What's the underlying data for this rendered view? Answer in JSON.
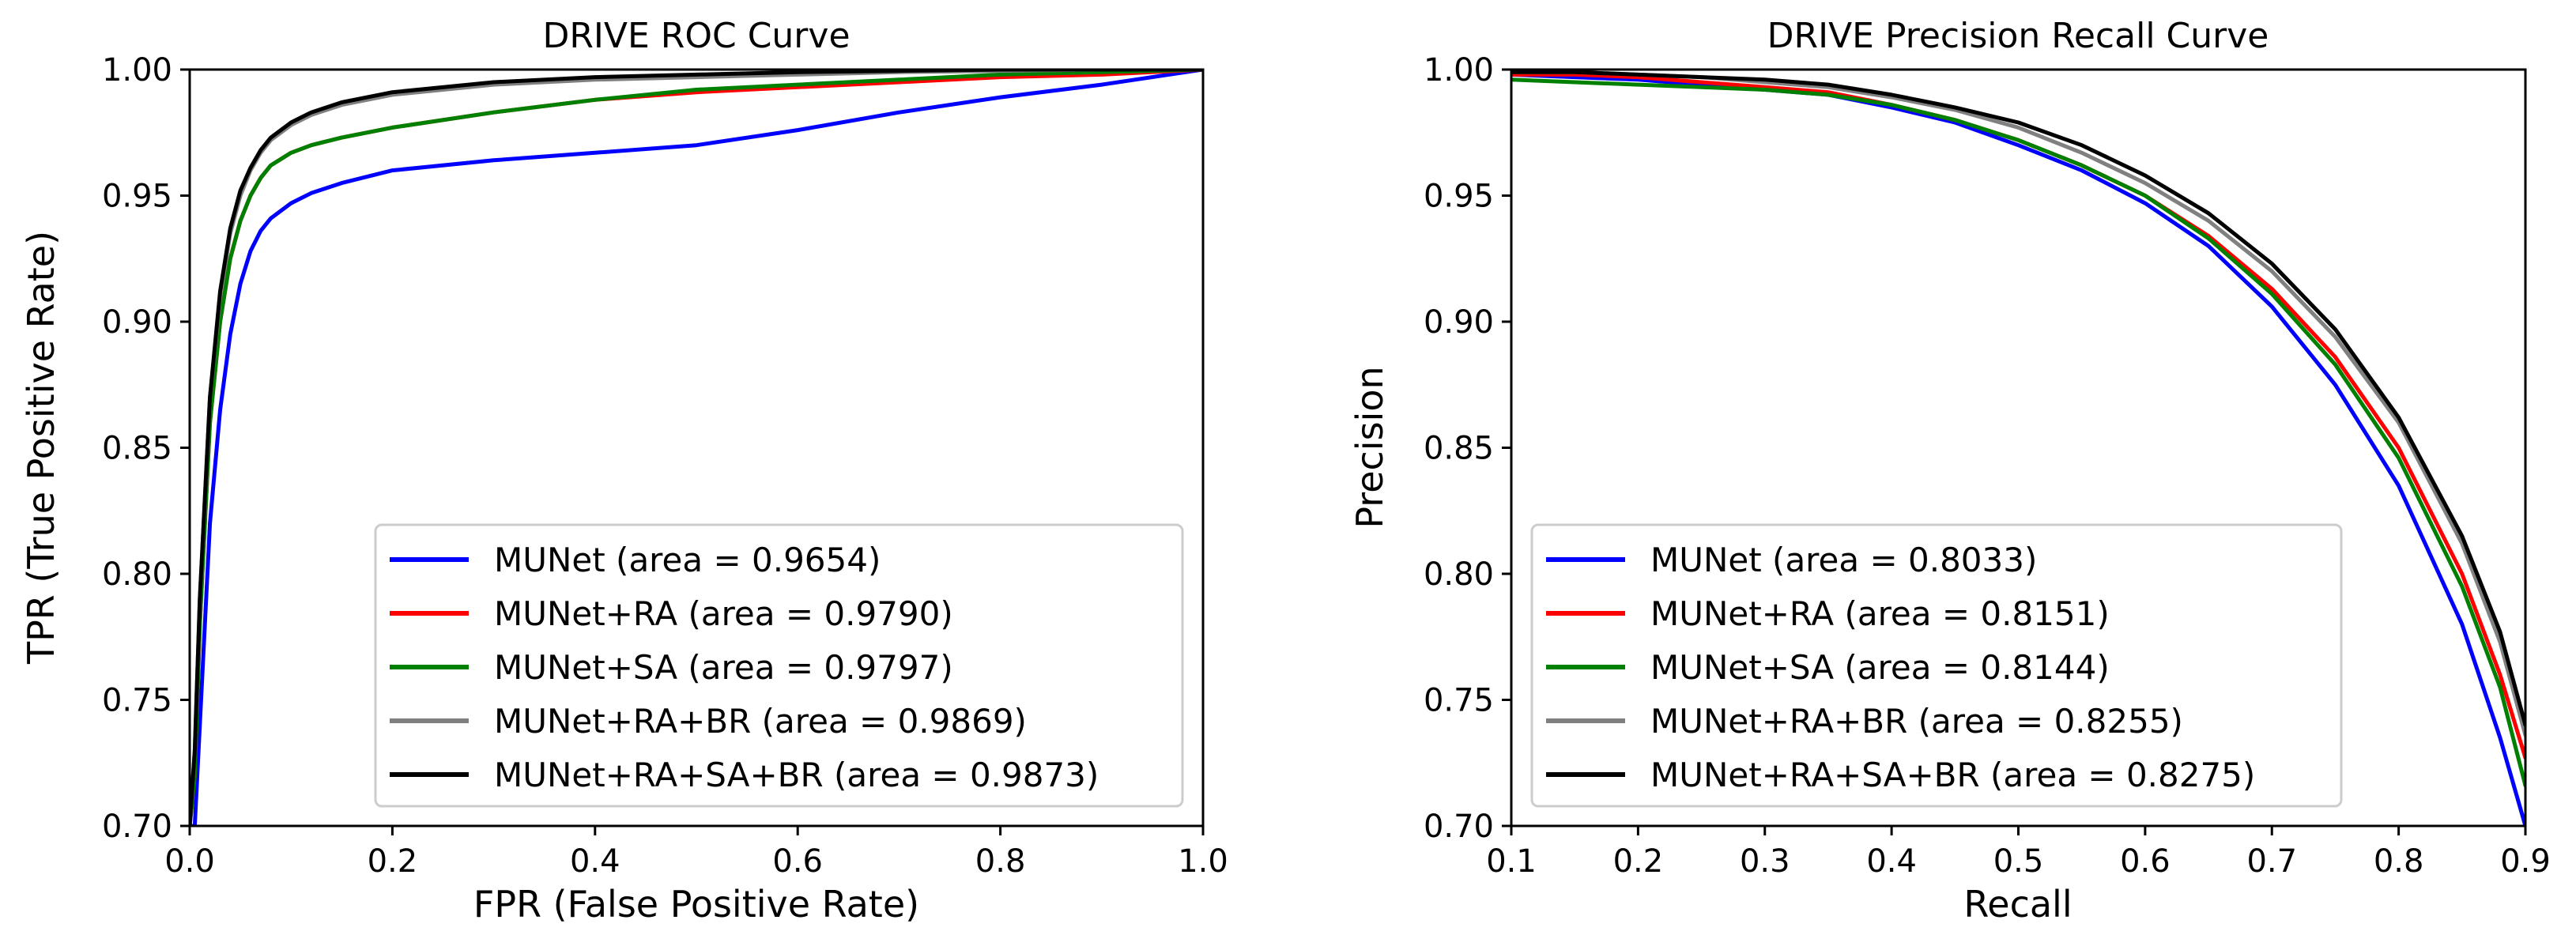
{
  "chart_data": [
    {
      "type": "line",
      "title": "DRIVE  ROC Curve",
      "xlabel": "FPR (False Positive Rate)",
      "ylabel": "TPR (True Positive Rate)",
      "xlim": [
        0.0,
        1.0
      ],
      "ylim": [
        0.7,
        1.0
      ],
      "xticks": [
        "0.0",
        "0.2",
        "0.4",
        "0.6",
        "0.8",
        "1.0"
      ],
      "yticks": [
        "0.70",
        "0.75",
        "0.80",
        "0.85",
        "0.90",
        "0.95",
        "1.00"
      ],
      "legend_position": "lower-right",
      "grid": false,
      "series": [
        {
          "name": "MUNet (area = 0.9654)",
          "color": "#0000ff",
          "x": [
            0.0,
            0.005,
            0.01,
            0.015,
            0.02,
            0.03,
            0.04,
            0.05,
            0.06,
            0.07,
            0.08,
            0.1,
            0.12,
            0.15,
            0.2,
            0.3,
            0.4,
            0.5,
            0.6,
            0.7,
            0.8,
            0.9,
            1.0
          ],
          "y": [
            0.7,
            0.7,
            0.74,
            0.78,
            0.82,
            0.865,
            0.895,
            0.915,
            0.928,
            0.936,
            0.941,
            0.947,
            0.951,
            0.955,
            0.96,
            0.964,
            0.967,
            0.97,
            0.976,
            0.983,
            0.989,
            0.994,
            1.0
          ]
        },
        {
          "name": "MUNet+RA (area = 0.9790)",
          "color": "#ff0000",
          "x": [
            0.0,
            0.005,
            0.01,
            0.015,
            0.02,
            0.03,
            0.04,
            0.05,
            0.06,
            0.07,
            0.08,
            0.1,
            0.12,
            0.15,
            0.2,
            0.3,
            0.4,
            0.5,
            0.6,
            0.7,
            0.8,
            0.9,
            1.0
          ],
          "y": [
            0.7,
            0.72,
            0.78,
            0.82,
            0.86,
            0.9,
            0.925,
            0.94,
            0.95,
            0.957,
            0.962,
            0.967,
            0.97,
            0.973,
            0.977,
            0.983,
            0.988,
            0.991,
            0.993,
            0.995,
            0.997,
            0.998,
            1.0
          ]
        },
        {
          "name": "MUNet+SA (area = 0.9797)",
          "color": "#008000",
          "x": [
            0.0,
            0.005,
            0.01,
            0.015,
            0.02,
            0.03,
            0.04,
            0.05,
            0.06,
            0.07,
            0.08,
            0.1,
            0.12,
            0.15,
            0.2,
            0.3,
            0.4,
            0.5,
            0.6,
            0.7,
            0.8,
            0.9,
            1.0
          ],
          "y": [
            0.7,
            0.72,
            0.78,
            0.82,
            0.86,
            0.9,
            0.925,
            0.94,
            0.95,
            0.957,
            0.962,
            0.967,
            0.97,
            0.973,
            0.977,
            0.983,
            0.988,
            0.992,
            0.994,
            0.996,
            0.998,
            0.999,
            1.0
          ]
        },
        {
          "name": "MUNet+RA+BR (area = 0.9869)",
          "color": "#808080",
          "x": [
            0.0,
            0.005,
            0.01,
            0.015,
            0.02,
            0.03,
            0.04,
            0.05,
            0.06,
            0.07,
            0.08,
            0.1,
            0.12,
            0.15,
            0.2,
            0.3,
            0.4,
            0.5,
            0.6,
            0.7,
            0.8,
            0.9,
            1.0
          ],
          "y": [
            0.7,
            0.73,
            0.79,
            0.83,
            0.87,
            0.91,
            0.935,
            0.95,
            0.96,
            0.967,
            0.972,
            0.978,
            0.982,
            0.986,
            0.99,
            0.994,
            0.996,
            0.997,
            0.998,
            0.999,
            0.9995,
            1.0,
            1.0
          ]
        },
        {
          "name": "MUNet+RA+SA+BR (area = 0.9873)",
          "color": "#000000",
          "x": [
            0.0,
            0.005,
            0.01,
            0.015,
            0.02,
            0.03,
            0.04,
            0.05,
            0.06,
            0.07,
            0.08,
            0.1,
            0.12,
            0.15,
            0.2,
            0.3,
            0.4,
            0.5,
            0.6,
            0.7,
            0.8,
            0.9,
            1.0
          ],
          "y": [
            0.7,
            0.73,
            0.79,
            0.83,
            0.87,
            0.912,
            0.937,
            0.952,
            0.961,
            0.968,
            0.973,
            0.979,
            0.983,
            0.987,
            0.991,
            0.995,
            0.997,
            0.998,
            0.999,
            0.9995,
            1.0,
            1.0,
            1.0
          ]
        }
      ]
    },
    {
      "type": "line",
      "title": "DRIVE Precision Recall Curve",
      "xlabel": "Recall",
      "ylabel": "Precision",
      "xlim": [
        0.1,
        0.9
      ],
      "ylim": [
        0.7,
        1.0
      ],
      "xticks": [
        "0.1",
        "0.2",
        "0.3",
        "0.4",
        "0.5",
        "0.6",
        "0.7",
        "0.8",
        "0.9"
      ],
      "yticks": [
        "0.70",
        "0.75",
        "0.80",
        "0.85",
        "0.90",
        "0.95",
        "1.00"
      ],
      "legend_position": "lower-left",
      "grid": false,
      "series": [
        {
          "name": "MUNet (area = 0.8033)",
          "color": "#0000ff",
          "x": [
            0.1,
            0.15,
            0.2,
            0.25,
            0.3,
            0.35,
            0.4,
            0.45,
            0.5,
            0.55,
            0.6,
            0.65,
            0.7,
            0.75,
            0.8,
            0.85,
            0.88,
            0.9
          ],
          "y": [
            0.998,
            0.997,
            0.996,
            0.994,
            0.992,
            0.99,
            0.985,
            0.979,
            0.97,
            0.96,
            0.947,
            0.93,
            0.906,
            0.875,
            0.835,
            0.78,
            0.735,
            0.7
          ]
        },
        {
          "name": "MUNet+RA (area = 0.8151)",
          "color": "#ff0000",
          "x": [
            0.1,
            0.15,
            0.2,
            0.25,
            0.3,
            0.35,
            0.4,
            0.45,
            0.5,
            0.55,
            0.6,
            0.65,
            0.7,
            0.75,
            0.8,
            0.85,
            0.88,
            0.9
          ],
          "y": [
            0.998,
            0.998,
            0.997,
            0.995,
            0.993,
            0.991,
            0.986,
            0.98,
            0.972,
            0.962,
            0.95,
            0.934,
            0.913,
            0.886,
            0.85,
            0.8,
            0.76,
            0.727
          ]
        },
        {
          "name": "MUNet+SA (area = 0.8144)",
          "color": "#008000",
          "x": [
            0.1,
            0.15,
            0.2,
            0.25,
            0.3,
            0.35,
            0.4,
            0.45,
            0.5,
            0.55,
            0.6,
            0.65,
            0.7,
            0.75,
            0.8,
            0.85,
            0.88,
            0.9
          ],
          "y": [
            0.996,
            0.995,
            0.994,
            0.993,
            0.992,
            0.99,
            0.986,
            0.98,
            0.972,
            0.962,
            0.95,
            0.933,
            0.911,
            0.883,
            0.846,
            0.795,
            0.755,
            0.716
          ]
        },
        {
          "name": "MUNet+RA+BR (area = 0.8255)",
          "color": "#808080",
          "x": [
            0.1,
            0.15,
            0.2,
            0.25,
            0.3,
            0.35,
            0.4,
            0.45,
            0.5,
            0.55,
            0.6,
            0.65,
            0.7,
            0.75,
            0.8,
            0.85,
            0.88,
            0.9
          ],
          "y": [
            0.999,
            0.999,
            0.998,
            0.997,
            0.995,
            0.993,
            0.989,
            0.984,
            0.977,
            0.967,
            0.955,
            0.94,
            0.92,
            0.894,
            0.86,
            0.812,
            0.773,
            0.736
          ]
        },
        {
          "name": "MUNet+RA+SA+BR (area = 0.8275)",
          "color": "#000000",
          "x": [
            0.1,
            0.15,
            0.2,
            0.25,
            0.3,
            0.35,
            0.4,
            0.45,
            0.5,
            0.55,
            0.6,
            0.65,
            0.7,
            0.75,
            0.8,
            0.85,
            0.88,
            0.9
          ],
          "y": [
            0.999,
            0.999,
            0.998,
            0.997,
            0.996,
            0.994,
            0.99,
            0.985,
            0.979,
            0.97,
            0.958,
            0.943,
            0.923,
            0.897,
            0.862,
            0.815,
            0.777,
            0.74
          ]
        }
      ]
    }
  ]
}
